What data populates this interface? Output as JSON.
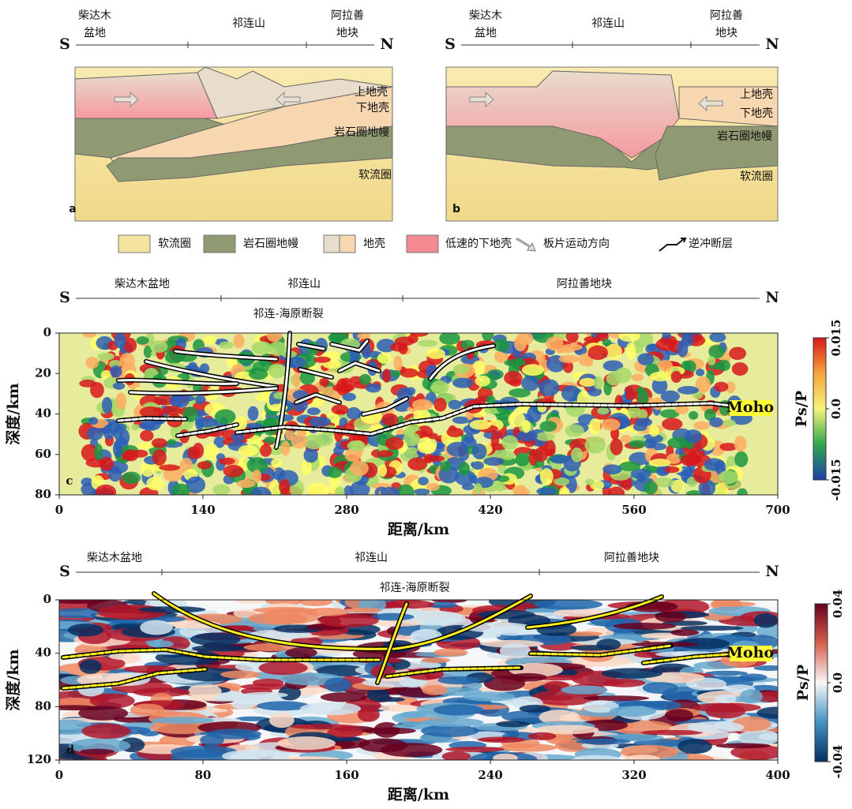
{
  "panel_a": {
    "start": "S",
    "end": "N",
    "regions": [
      [
        "柴达木",
        "盆地"
      ],
      [
        "祁连山"
      ],
      [
        "阿拉善",
        "地块"
      ]
    ],
    "layers": [
      "上地壳",
      "下地壳",
      "岩石圈地幔",
      "软流圈"
    ],
    "tag": "a"
  },
  "panel_b": {
    "start": "S",
    "end": "N",
    "regions": [
      [
        "柴达木",
        "盆地"
      ],
      [
        "祁连山"
      ],
      [
        "阿拉善",
        "地块"
      ]
    ],
    "layers": [
      "上地壳",
      "下地壳",
      "岩石圈地幔",
      "软流圈"
    ],
    "tag": "b"
  },
  "legend": [
    "软流圈",
    "岩石圈地幔",
    "地壳",
    "低速的下地壳",
    "板片运动方向",
    "逆冲断层"
  ],
  "panel_c": {
    "start": "S",
    "end": "N",
    "regions": [
      "柴达木盆地",
      "祁连山",
      "阿拉善地块"
    ],
    "fault_label": "祁连-海原断裂",
    "moho_label": "Moho",
    "tag": "c",
    "x_label": "距离/km",
    "y_label": "深度/km",
    "xlim": [
      0,
      700
    ],
    "xticks": [
      0,
      140,
      280,
      420,
      560,
      700
    ],
    "ylim": [
      0,
      80
    ],
    "yticks": [
      0,
      20,
      40,
      60,
      80
    ],
    "colorbar": {
      "label": "Ps/P",
      "lim": [
        -0.015,
        0.015
      ],
      "ticks": [
        -0.015,
        {
          "value": 0,
          "label": "0.0"
        },
        0.015
      ]
    }
  },
  "panel_d": {
    "start": "S",
    "end": "N",
    "regions": [
      "柴达木盆地",
      "祁连山",
      "阿拉善地块"
    ],
    "fault_label": "祁连-海原断裂",
    "moho_label": "Moho",
    "tag": "d",
    "x_label": "距离/km",
    "y_label": "深度/km",
    "xlim": [
      0,
      400
    ],
    "xticks": [
      0,
      80,
      160,
      240,
      320,
      400
    ],
    "ylim": [
      0,
      120
    ],
    "yticks": [
      0,
      40,
      80,
      120
    ],
    "colorbar": {
      "label": "Ps/P",
      "lim": [
        -0.04,
        0.04
      ],
      "ticks": [
        -0.04,
        {
          "value": 0,
          "label": "0.0"
        },
        0.04
      ]
    }
  }
}
